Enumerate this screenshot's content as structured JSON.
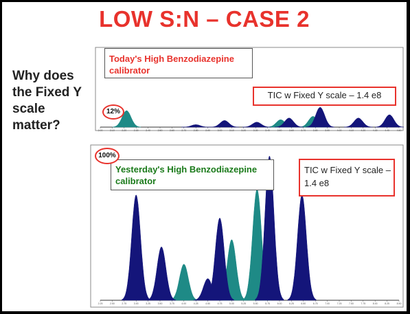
{
  "slide": {
    "title": "LOW S:N – CASE 2",
    "question": "Why does the Fixed Y scale matter?"
  },
  "colors": {
    "accent": "#e8322c",
    "navy": "#14157a",
    "teal": "#1e8a86",
    "green": "#1a7a1a"
  },
  "chart_data": [
    {
      "type": "line",
      "panel": "top",
      "title": "Today's High Benzodiazepine calibrator",
      "annotation": "TIC w Fixed Y scale – 1.4 e8",
      "scale_label": "12%",
      "ylim": [
        0,
        100
      ],
      "x": [
        "2.00",
        "2.10",
        "2.20",
        "2.30",
        "2.40",
        "2.50",
        "2.60",
        "2.70",
        "2.80",
        "2.90",
        "3.00",
        "3.10",
        "3.20",
        "3.30",
        "3.40",
        "3.50",
        "3.60",
        "3.70",
        "3.80",
        "3.90",
        "4.00",
        "4.10",
        "4.20",
        "4.30",
        "4.40",
        "4.50"
      ],
      "series": [
        {
          "color": "teal",
          "peaks": [
            {
              "x": 2.22,
              "y": 20
            },
            {
              "x": 3.51,
              "y": 9
            },
            {
              "x": 3.78,
              "y": 13
            }
          ]
        },
        {
          "color": "navy",
          "peaks": [
            {
              "x": 2.8,
              "y": 3
            },
            {
              "x": 3.04,
              "y": 8
            },
            {
              "x": 3.31,
              "y": 6
            },
            {
              "x": 3.58,
              "y": 11
            },
            {
              "x": 3.84,
              "y": 24
            },
            {
              "x": 4.16,
              "y": 11
            },
            {
              "x": 4.42,
              "y": 15
            }
          ]
        }
      ]
    },
    {
      "type": "line",
      "panel": "bottom",
      "title": "Yesterday's High Benzodiazepine calibrator",
      "annotation": "TIC w Fixed Y scale – 1.4 e8",
      "scale_label": "100%",
      "ylim": [
        0,
        100
      ],
      "x": [
        "2.25",
        "2.50",
        "2.75",
        "3.00",
        "3.25",
        "3.50",
        "3.75",
        "4.00",
        "4.25",
        "4.50",
        "4.75",
        "5.00",
        "5.25",
        "5.50",
        "5.75",
        "6.00",
        "6.25",
        "6.50",
        "6.75",
        "7.00",
        "7.25",
        "7.50",
        "7.75",
        "8.00",
        "8.25",
        "8.50"
      ],
      "series": [
        {
          "color": "teal",
          "peaks": [
            {
              "x": 4.0,
              "y": 25
            },
            {
              "x": 5.0,
              "y": 42
            },
            {
              "x": 5.53,
              "y": 77
            }
          ]
        },
        {
          "color": "navy",
          "peaks": [
            {
              "x": 3.0,
              "y": 73
            },
            {
              "x": 3.53,
              "y": 37
            },
            {
              "x": 4.5,
              "y": 15
            },
            {
              "x": 4.75,
              "y": 57
            },
            {
              "x": 5.79,
              "y": 100
            },
            {
              "x": 6.47,
              "y": 73
            }
          ]
        }
      ]
    }
  ]
}
